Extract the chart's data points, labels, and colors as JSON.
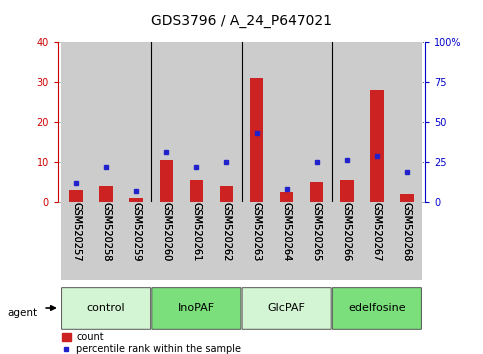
{
  "title": "GDS3796 / A_24_P647021",
  "samples": [
    "GSM520257",
    "GSM520258",
    "GSM520259",
    "GSM520260",
    "GSM520261",
    "GSM520262",
    "GSM520263",
    "GSM520264",
    "GSM520265",
    "GSM520266",
    "GSM520267",
    "GSM520268"
  ],
  "counts": [
    3,
    4,
    1,
    10.5,
    5.5,
    4,
    31,
    2.5,
    5,
    5.5,
    28,
    2
  ],
  "percentiles": [
    12,
    22,
    7,
    31,
    22,
    25,
    43,
    8,
    25,
    26,
    29,
    19
  ],
  "groups": [
    {
      "label": "control",
      "start": 0,
      "end": 3,
      "color": "#d4f5d4"
    },
    {
      "label": "InoPAF",
      "start": 3,
      "end": 6,
      "color": "#7be07b"
    },
    {
      "label": "GlcPAF",
      "start": 6,
      "end": 9,
      "color": "#d4f5d4"
    },
    {
      "label": "edelfosine",
      "start": 9,
      "end": 12,
      "color": "#7be07b"
    }
  ],
  "ylim_left": [
    0,
    40
  ],
  "ylim_right": [
    0,
    100
  ],
  "yticks_left": [
    0,
    10,
    20,
    30,
    40
  ],
  "yticks_right": [
    0,
    25,
    50,
    75,
    100
  ],
  "ytick_labels_right": [
    "0",
    "25",
    "50",
    "75",
    "100%"
  ],
  "bar_color": "#cc2222",
  "dot_color": "#2222cc",
  "cell_bg_color": "#cccccc",
  "left_axis_color": "#cc0000",
  "right_axis_color": "#0000cc",
  "title_fontsize": 10,
  "tick_fontsize": 7,
  "label_fontsize": 7,
  "group_fontsize": 8
}
